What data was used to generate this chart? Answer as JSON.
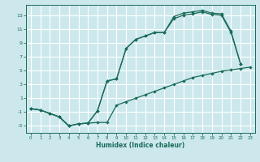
{
  "xlabel": "Humidex (Indice chaleur)",
  "bg_color": "#cce8ec",
  "grid_color": "#ffffff",
  "line_color": "#1a6b5a",
  "xlim": [
    -0.5,
    23.5
  ],
  "ylim": [
    -4,
    14.5
  ],
  "xticks": [
    0,
    1,
    2,
    3,
    4,
    5,
    6,
    7,
    8,
    9,
    10,
    11,
    12,
    13,
    14,
    15,
    16,
    17,
    18,
    19,
    20,
    21,
    22,
    23
  ],
  "yticks": [
    -3,
    -1,
    1,
    3,
    5,
    7,
    9,
    11,
    13
  ],
  "line_bottom_x": [
    0,
    1,
    2,
    3,
    4,
    5,
    6,
    7,
    8,
    9,
    10,
    11,
    12,
    13,
    14,
    15,
    16,
    17,
    18,
    19,
    20,
    21,
    22,
    23
  ],
  "line_bottom_y": [
    -0.5,
    -0.7,
    -1.2,
    -1.7,
    -3.0,
    -2.7,
    -2.6,
    -2.5,
    -2.5,
    0.0,
    0.5,
    1.0,
    1.5,
    2.0,
    2.5,
    3.0,
    3.5,
    4.0,
    4.3,
    4.6,
    4.9,
    5.1,
    5.3,
    5.5
  ],
  "line_mid_x": [
    0,
    1,
    2,
    3,
    4,
    5,
    6,
    7,
    8,
    9,
    10,
    11,
    12,
    13,
    14,
    15,
    16,
    17,
    18,
    19,
    20,
    21,
    22
  ],
  "line_mid_y": [
    -0.5,
    -0.7,
    -1.2,
    -1.7,
    -3.0,
    -2.7,
    -2.6,
    -0.8,
    3.5,
    3.8,
    8.2,
    9.5,
    10.0,
    10.5,
    10.5,
    12.5,
    13.0,
    13.2,
    13.5,
    13.1,
    13.0,
    10.5,
    6.0
  ],
  "line_top_x": [
    0,
    1,
    2,
    3,
    4,
    5,
    6,
    7,
    8,
    9,
    10,
    11,
    12,
    13,
    14,
    15,
    16,
    17,
    18,
    19,
    20,
    21,
    22
  ],
  "line_top_y": [
    -0.5,
    -0.7,
    -1.2,
    -1.7,
    -3.0,
    -2.7,
    -2.6,
    -0.8,
    3.5,
    3.8,
    8.2,
    9.5,
    10.0,
    10.5,
    10.5,
    12.8,
    13.3,
    13.5,
    13.7,
    13.3,
    13.2,
    10.7,
    6.0
  ]
}
